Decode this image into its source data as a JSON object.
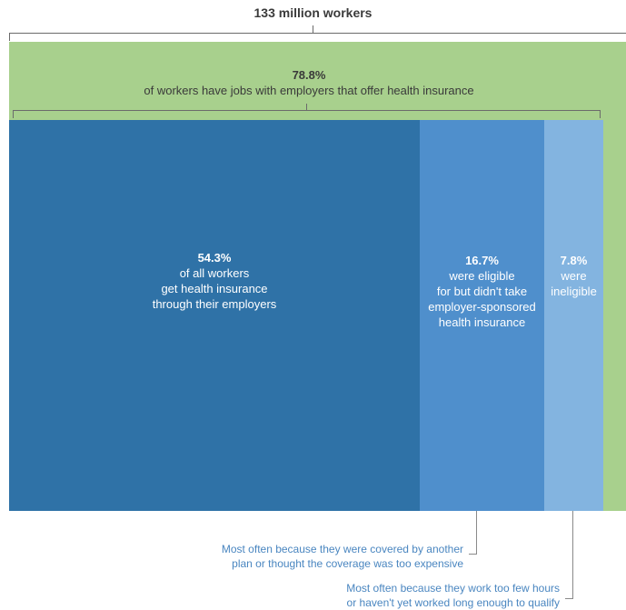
{
  "chart_data": {
    "type": "bar",
    "title": "133 million workers",
    "total_label": "133 million workers",
    "group": {
      "percent": "78.8%",
      "text": "of workers have jobs with employers that offer health insurance"
    },
    "segments": [
      {
        "percent": "54.3%",
        "value": 54.3,
        "lines": [
          "of all workers",
          "get health insurance",
          "through their employers"
        ],
        "color": "#2f72a7"
      },
      {
        "percent": "16.7%",
        "value": 16.7,
        "lines": [
          "were eligible",
          "for but didn't take",
          "employer-sponsored",
          "health insurance"
        ],
        "color": "#4f8fcc"
      },
      {
        "percent": "7.8%",
        "value": 7.8,
        "lines": [
          "were",
          "ineligible"
        ],
        "color": "#83b4e0"
      }
    ],
    "remainder_color": "#a8d08d",
    "notes": [
      {
        "lines": [
          "Most often because they were covered by another",
          "plan or thought the coverage was too expensive"
        ]
      },
      {
        "lines": [
          "Most often because they work too few hours",
          "or haven't yet worked long enough to qualify"
        ]
      }
    ]
  }
}
